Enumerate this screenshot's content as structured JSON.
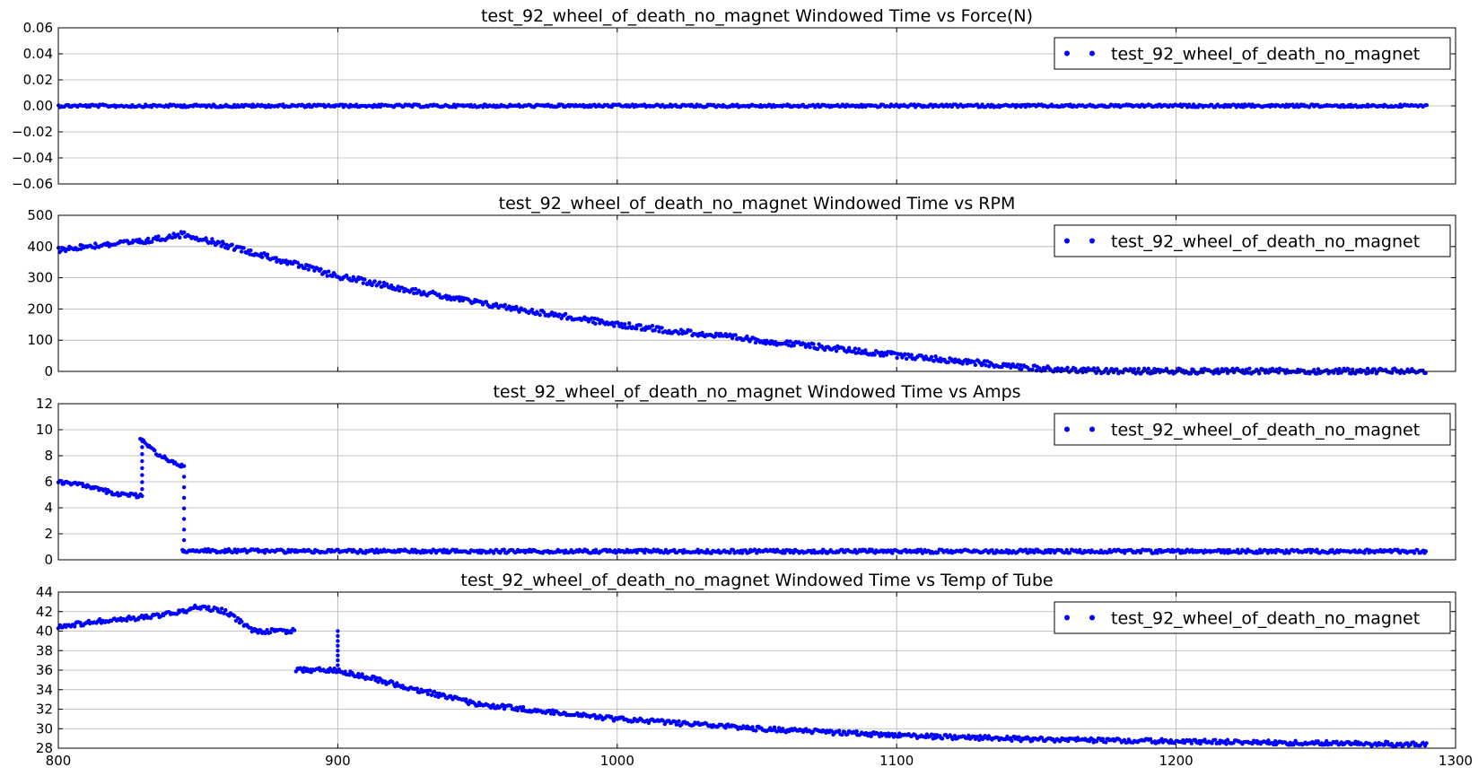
{
  "chart_data": [
    {
      "type": "scatter",
      "title": "test_92_wheel_of_death_no_magnet Windowed Time vs Force(N)",
      "xlim": [
        800,
        1300
      ],
      "ylim": [
        -0.06,
        0.06
      ],
      "xticks": [
        "800",
        "900",
        "1000",
        "1100",
        "1200",
        "1300"
      ],
      "yticks": [
        "0.06",
        "0.04",
        "0.02",
        "0.00",
        "−0.02",
        "−0.04",
        "−0.06"
      ],
      "show_xtick_labels": false,
      "grid": true,
      "legend": "upper-right",
      "series": [
        {
          "name": "test_92_wheel_of_death_no_magnet",
          "color": "#0000ff",
          "points": [
            [
              800,
              0.0
            ],
            [
              900,
              0.0
            ],
            [
              1000,
              0.0
            ],
            [
              1100,
              0.0
            ],
            [
              1200,
              0.0
            ],
            [
              1290,
              0.0
            ]
          ]
        }
      ]
    },
    {
      "type": "scatter",
      "title": "test_92_wheel_of_death_no_magnet Windowed Time vs RPM",
      "xlim": [
        800,
        1300
      ],
      "ylim": [
        0,
        500
      ],
      "xticks": [
        "800",
        "900",
        "1000",
        "1100",
        "1200",
        "1300"
      ],
      "yticks": [
        "500",
        "400",
        "300",
        "200",
        "100",
        "0"
      ],
      "show_xtick_labels": false,
      "grid": true,
      "legend": "upper-right",
      "series": [
        {
          "name": "test_92_wheel_of_death_no_magnet",
          "color": "#0000ff",
          "points": [
            [
              800,
              390
            ],
            [
              815,
              405
            ],
            [
              830,
              415
            ],
            [
              845,
              440
            ],
            [
              870,
              380
            ],
            [
              900,
              305
            ],
            [
              950,
              220
            ],
            [
              1000,
              150
            ],
            [
              1050,
              100
            ],
            [
              1100,
              52
            ],
            [
              1150,
              10
            ],
            [
              1170,
              2
            ],
            [
              1200,
              1
            ],
            [
              1290,
              1
            ]
          ]
        }
      ]
    },
    {
      "type": "scatter",
      "title": "test_92_wheel_of_death_no_magnet Windowed Time vs Amps",
      "xlim": [
        800,
        1300
      ],
      "ylim": [
        0,
        12
      ],
      "xticks": [
        "800",
        "900",
        "1000",
        "1100",
        "1200",
        "1300"
      ],
      "yticks": [
        "12",
        "10",
        "8",
        "6",
        "4",
        "2",
        "0"
      ],
      "show_xtick_labels": false,
      "grid": true,
      "legend": "upper-right",
      "series": [
        {
          "name": "test_92_wheel_of_death_no_magnet",
          "color": "#0000ff",
          "points": [
            [
              800,
              6.0
            ],
            [
              810,
              5.7
            ],
            [
              820,
              5.1
            ],
            [
              829,
              4.9
            ],
            [
              830,
              9.2
            ],
            [
              835,
              8.2
            ],
            [
              840,
              7.6
            ],
            [
              844,
              7.2
            ],
            [
              845,
              0.7
            ],
            [
              900,
              0.65
            ],
            [
              1000,
              0.65
            ],
            [
              1100,
              0.65
            ],
            [
              1200,
              0.65
            ],
            [
              1290,
              0.65
            ]
          ]
        }
      ]
    },
    {
      "type": "scatter",
      "title": "test_92_wheel_of_death_no_magnet Windowed Time vs Temp of Tube",
      "xlim": [
        800,
        1300
      ],
      "ylim": [
        28,
        44
      ],
      "xticks": [
        "800",
        "900",
        "1000",
        "1100",
        "1200",
        "1300"
      ],
      "yticks": [
        "44",
        "42",
        "40",
        "38",
        "36",
        "34",
        "32",
        "30",
        "28"
      ],
      "show_xtick_labels": true,
      "grid": true,
      "legend": "upper-right",
      "series": [
        {
          "name": "test_92_wheel_of_death_no_magnet",
          "color": "#0000ff",
          "points": [
            [
              800,
              40.5
            ],
            [
              815,
              41.0
            ],
            [
              830,
              41.4
            ],
            [
              845,
              42.0
            ],
            [
              850,
              42.5
            ],
            [
              860,
              42.0
            ],
            [
              870,
              40.0
            ],
            [
              900,
              36.0
            ],
            [
              950,
              32.5
            ],
            [
              1000,
              31.0
            ],
            [
              1050,
              30.0
            ],
            [
              1100,
              29.3
            ],
            [
              1150,
              28.9
            ],
            [
              1200,
              28.7
            ],
            [
              1290,
              28.4
            ]
          ]
        }
      ]
    }
  ]
}
